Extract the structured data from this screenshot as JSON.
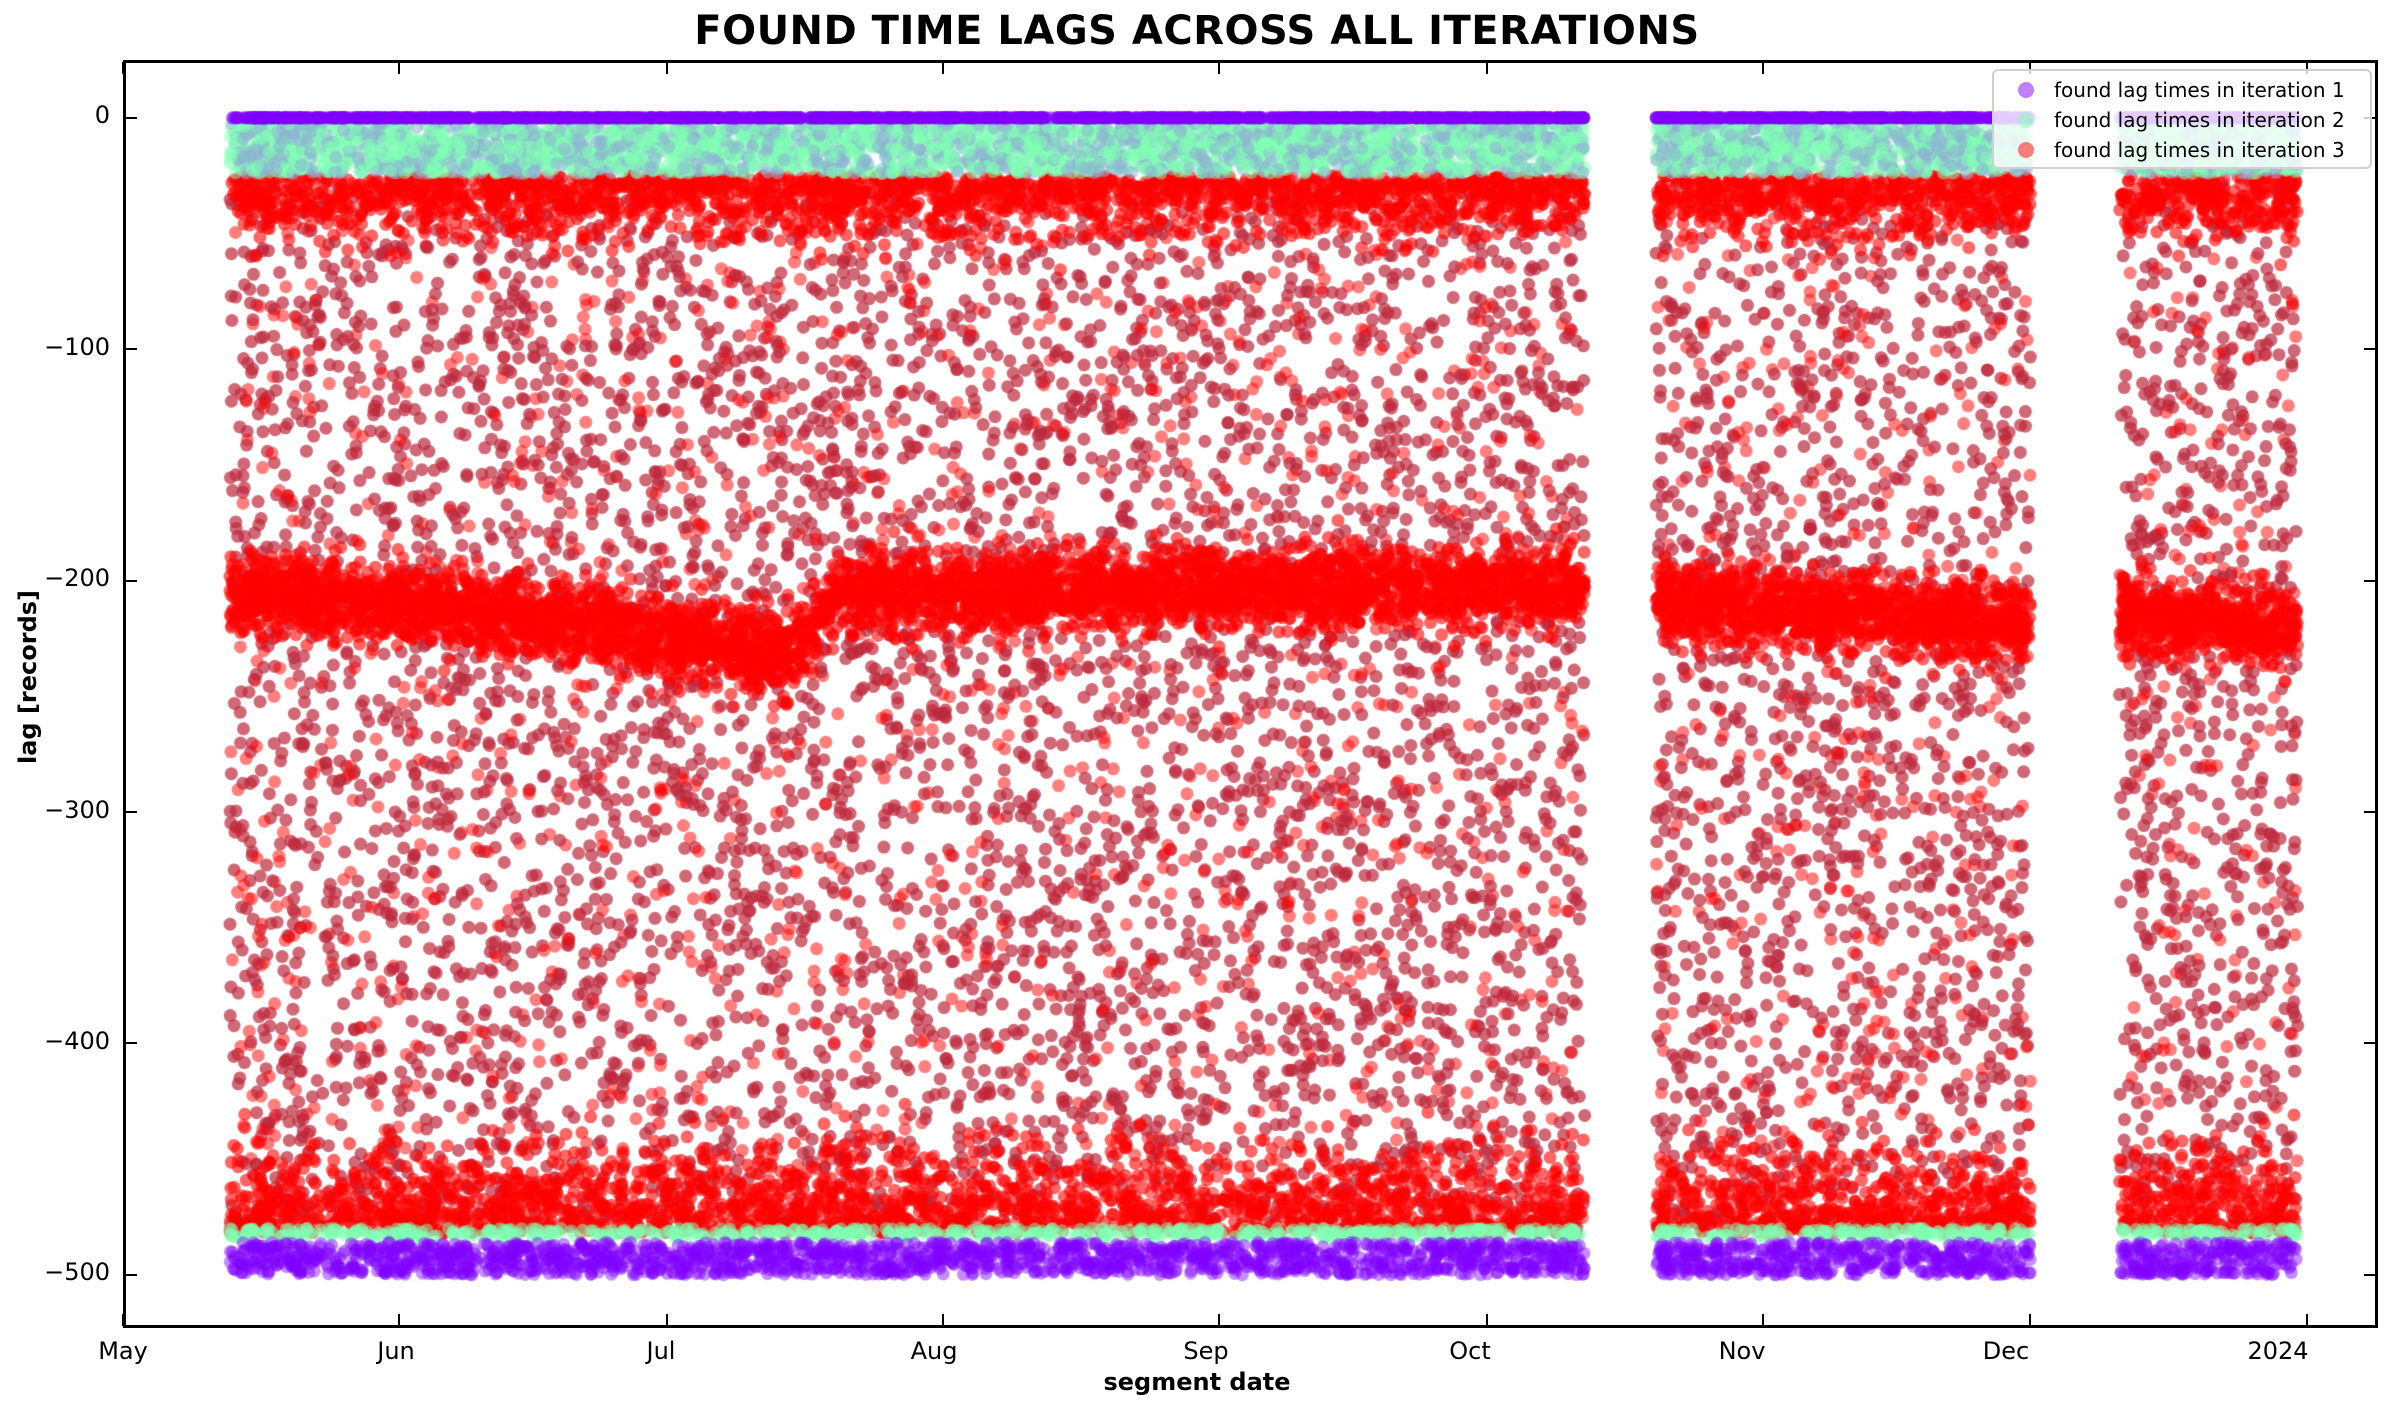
{
  "chart_data": {
    "type": "scatter",
    "title": "FOUND TIME LAGS ACROSS ALL ITERATIONS",
    "xlabel": "segment date",
    "ylabel": "lag  [records]",
    "x_tick_labels": [
      "May",
      "Jun",
      "Jul",
      "Aug",
      "Sep",
      "Oct",
      "Nov",
      "Dec",
      "2024"
    ],
    "x_tick_dates": [
      "2023-05-01",
      "2023-06-01",
      "2023-07-01",
      "2023-08-01",
      "2023-09-01",
      "2023-10-01",
      "2023-11-01",
      "2023-12-01",
      "2024-01-01"
    ],
    "xlim": [
      "2023-05-01",
      "2024-01-09"
    ],
    "y_ticks": [
      0,
      -100,
      -200,
      -300,
      -400,
      -500
    ],
    "y_tick_labels": [
      "0",
      "−100",
      "−200",
      "−300",
      "−400",
      "−500"
    ],
    "ylim": [
      -523,
      25
    ],
    "grid": false,
    "legend_position": "upper right",
    "data_segments": [
      {
        "start": "2023-05-13",
        "end": "2023-10-12"
      },
      {
        "start": "2023-10-20",
        "end": "2023-12-01"
      },
      {
        "start": "2023-12-11",
        "end": "2023-12-31"
      }
    ],
    "series": [
      {
        "name": "found lag times in iteration 1",
        "color": "#8000ff",
        "alpha": 0.5,
        "description": "Points clustered at lag 0 (top band) and between -485 and -500 (bottom band)",
        "bands": [
          [
            -1,
            1
          ],
          [
            -500,
            -485
          ]
        ]
      },
      {
        "name": "found lag times in iteration 2",
        "color": "#80ffb4",
        "alpha": 0.5,
        "description": "Points between -2 and -24 (top band) and around -480 to -485 (bottom band)",
        "bands": [
          [
            -24,
            -2
          ],
          [
            -486,
            -479
          ]
        ]
      },
      {
        "name": "found lag times in iteration 3",
        "color": "#ff0000",
        "alpha": 0.5,
        "description": "Points spread from -25 to -482, dense along the top edge (-25), the bottom edge (-482) and a central band around -200 to -240",
        "range": [
          -482,
          -25
        ],
        "central_band_trend": [
          {
            "date": "2023-05-15",
            "lag": -205
          },
          {
            "date": "2023-06-15",
            "lag": -215
          },
          {
            "date": "2023-07-15",
            "lag": -232
          },
          {
            "date": "2023-07-20",
            "lag": -205
          },
          {
            "date": "2023-09-05",
            "lag": -203
          },
          {
            "date": "2023-09-15",
            "lag": -203
          },
          {
            "date": "2023-10-12",
            "lag": -202
          },
          {
            "date": "2023-10-20",
            "lag": -208
          },
          {
            "date": "2023-11-15",
            "lag": -215
          },
          {
            "date": "2023-12-01",
            "lag": -218
          },
          {
            "date": "2023-12-11",
            "lag": -215
          },
          {
            "date": "2023-12-31",
            "lag": -220
          }
        ]
      }
    ]
  },
  "legend": {
    "items": [
      {
        "label": "found lag times in iteration 1",
        "color": "#8000ff"
      },
      {
        "label": "found lag times in iteration 2",
        "color": "#80ffb4"
      },
      {
        "label": "found lag times in iteration 3",
        "color": "#ff0000"
      }
    ]
  }
}
